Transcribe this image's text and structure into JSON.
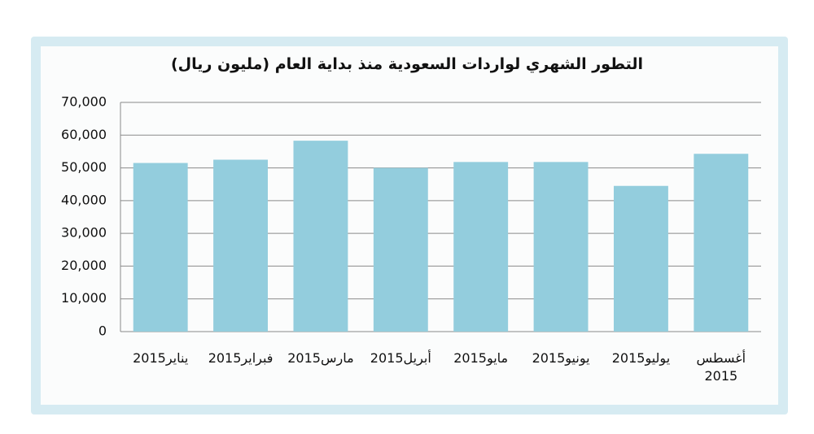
{
  "chart_data": {
    "type": "bar",
    "title": "التطور الشهري لواردات السعودية منذ بداية العام (مليون ريال)",
    "categories": [
      "2015يناير",
      "2015فبراير",
      "2015مارس",
      "2015أبريل",
      "2015مايو",
      "2015يونيو",
      "2015يوليو",
      "أغسطس 2015"
    ],
    "values": [
      51500,
      52500,
      58300,
      50000,
      51800,
      51800,
      44500,
      54300
    ],
    "color": "#93cddd",
    "ylim": [
      0,
      70000
    ],
    "yticks": [
      0,
      {
        "value": 10000,
        "label": "10,000"
      },
      {
        "value": 20000,
        "label": "20,000"
      },
      {
        "value": 30000,
        "label": "30,000"
      },
      {
        "value": 40000,
        "label": "40,000"
      },
      {
        "value": 50000,
        "label": "50,000"
      },
      {
        "value": 60000,
        "label": "60,000"
      },
      {
        "value": 70000,
        "label": "70,000"
      }
    ],
    "grid": true
  }
}
